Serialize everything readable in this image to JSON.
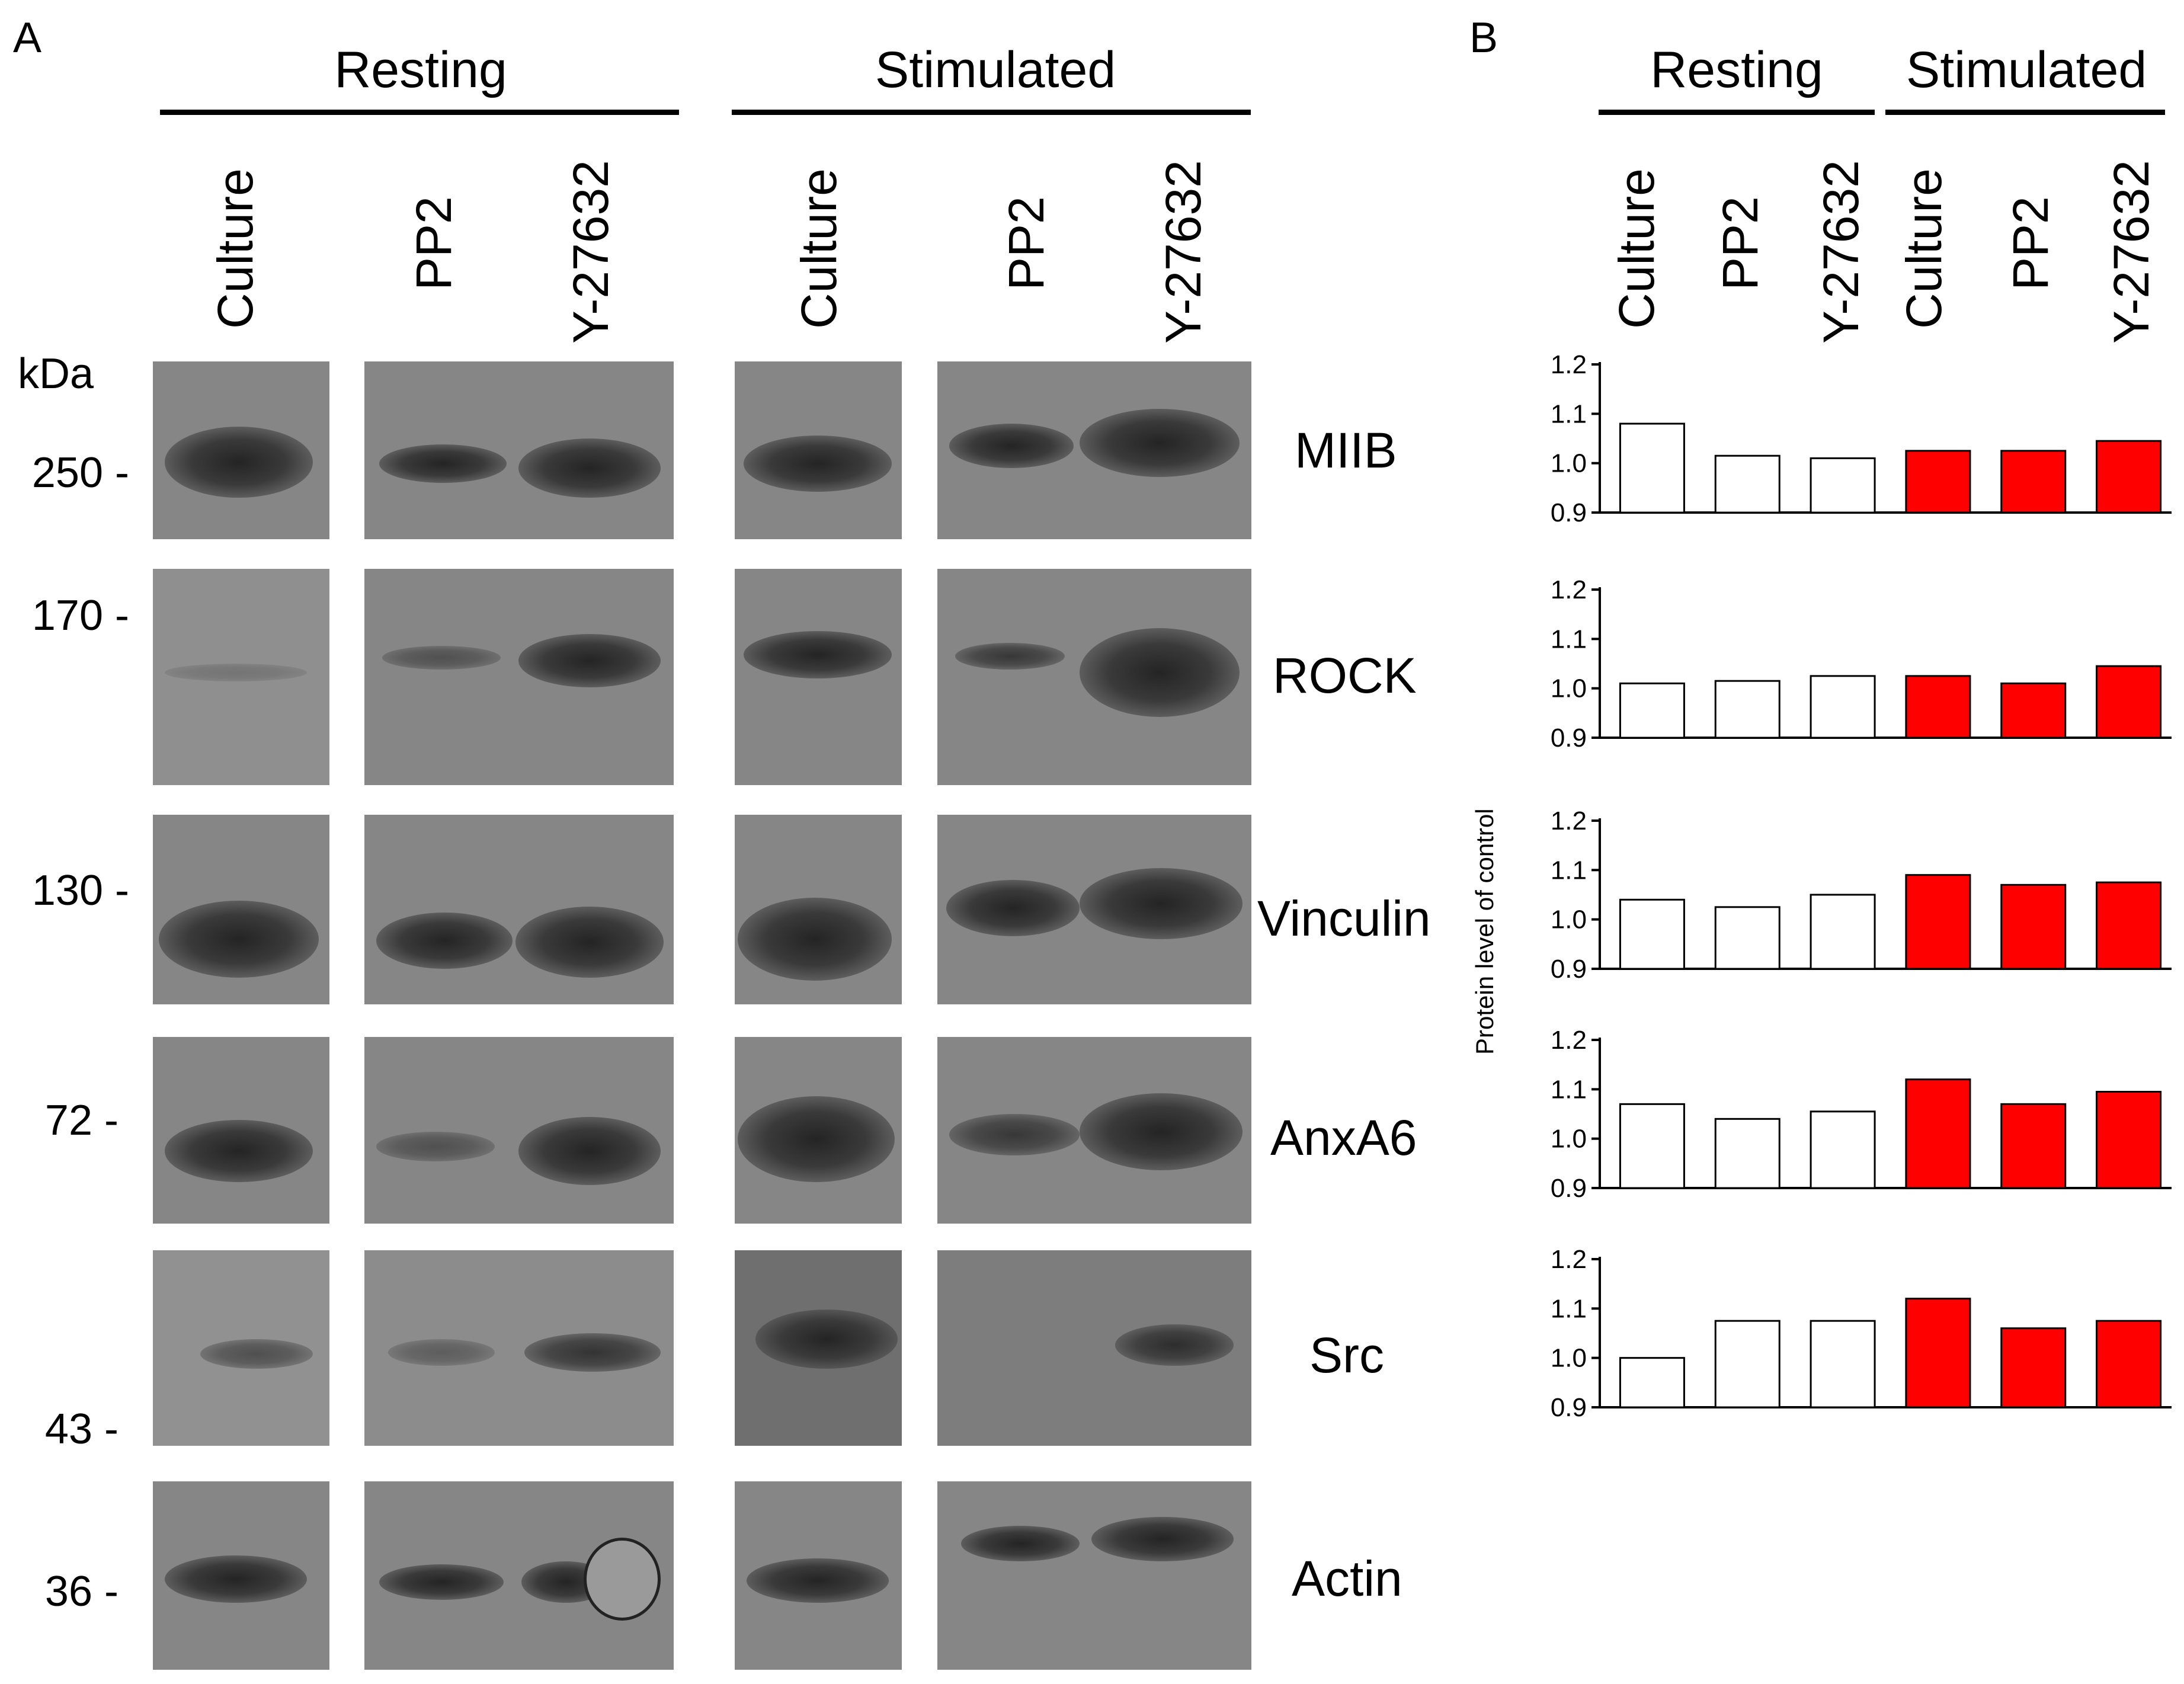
{
  "panel_a": {
    "letter": "A",
    "groups": [
      {
        "title": "Resting",
        "lanes": [
          "Culture",
          "PP2",
          "Y-27632"
        ]
      },
      {
        "title": "Stimulated",
        "lanes": [
          "Culture",
          "PP2",
          "Y-27632"
        ]
      }
    ],
    "kda_label": "kDa",
    "markers": [
      "250 -",
      "170 -",
      "130 -",
      "72 -",
      "43 -",
      "36 -"
    ],
    "proteins": [
      "MIIB",
      "ROCK",
      "Vinculin",
      "AnxA6",
      "Src",
      "Actin"
    ]
  },
  "panel_b": {
    "letter": "B",
    "groups": [
      {
        "title": "Resting",
        "lanes": [
          "Culture",
          "PP2",
          "Y-27632"
        ]
      },
      {
        "title": "Stimulated",
        "lanes": [
          "Culture",
          "PP2",
          "Y-27632"
        ]
      }
    ],
    "ylabel": "Protein level of control"
  },
  "colors": {
    "resting_fill": "#ffffff",
    "stimulated_fill": "#ff0000",
    "bar_stroke": "#000000"
  },
  "chart_data": [
    {
      "type": "bar",
      "protein": "MIIB",
      "categories": [
        "Culture",
        "PP2",
        "Y-27632",
        "Culture",
        "PP2",
        "Y-27632"
      ],
      "series": [
        {
          "values": [
            1.08,
            1.015,
            1.01,
            1.025,
            1.025,
            1.045
          ]
        }
      ],
      "ylim": [
        0.9,
        1.2
      ],
      "yticks": [
        "0.9",
        "1.0",
        "1.1",
        "1.2"
      ],
      "grid": false
    },
    {
      "type": "bar",
      "protein": "ROCK",
      "categories": [
        "Culture",
        "PP2",
        "Y-27632",
        "Culture",
        "PP2",
        "Y-27632"
      ],
      "series": [
        {
          "values": [
            1.01,
            1.015,
            1.025,
            1.025,
            1.01,
            1.045
          ]
        }
      ],
      "ylim": [
        0.9,
        1.2
      ],
      "yticks": [
        "0.9",
        "1.0",
        "1.1",
        "1.2"
      ],
      "grid": false
    },
    {
      "type": "bar",
      "protein": "Vinculin",
      "categories": [
        "Culture",
        "PP2",
        "Y-27632",
        "Culture",
        "PP2",
        "Y-27632"
      ],
      "series": [
        {
          "values": [
            1.04,
            1.025,
            1.05,
            1.09,
            1.07,
            1.075
          ]
        }
      ],
      "ylim": [
        0.9,
        1.2
      ],
      "yticks": [
        "0.9",
        "1.0",
        "1.1",
        "1.2"
      ],
      "grid": false
    },
    {
      "type": "bar",
      "protein": "AnxA6",
      "categories": [
        "Culture",
        "PP2",
        "Y-27632",
        "Culture",
        "PP2",
        "Y-27632"
      ],
      "series": [
        {
          "values": [
            1.07,
            1.04,
            1.055,
            1.12,
            1.07,
            1.095
          ]
        }
      ],
      "ylim": [
        0.9,
        1.2
      ],
      "yticks": [
        "0.9",
        "1.0",
        "1.1",
        "1.2"
      ],
      "grid": false
    },
    {
      "type": "bar",
      "protein": "Src",
      "categories": [
        "Culture",
        "PP2",
        "Y-27632",
        "Culture",
        "PP2",
        "Y-27632"
      ],
      "series": [
        {
          "values": [
            1.0,
            1.075,
            1.075,
            1.12,
            1.06,
            1.075
          ]
        }
      ],
      "ylim": [
        0.9,
        1.2
      ],
      "yticks": [
        "0.9",
        "1.0",
        "1.1",
        "1.2"
      ],
      "grid": false
    }
  ]
}
